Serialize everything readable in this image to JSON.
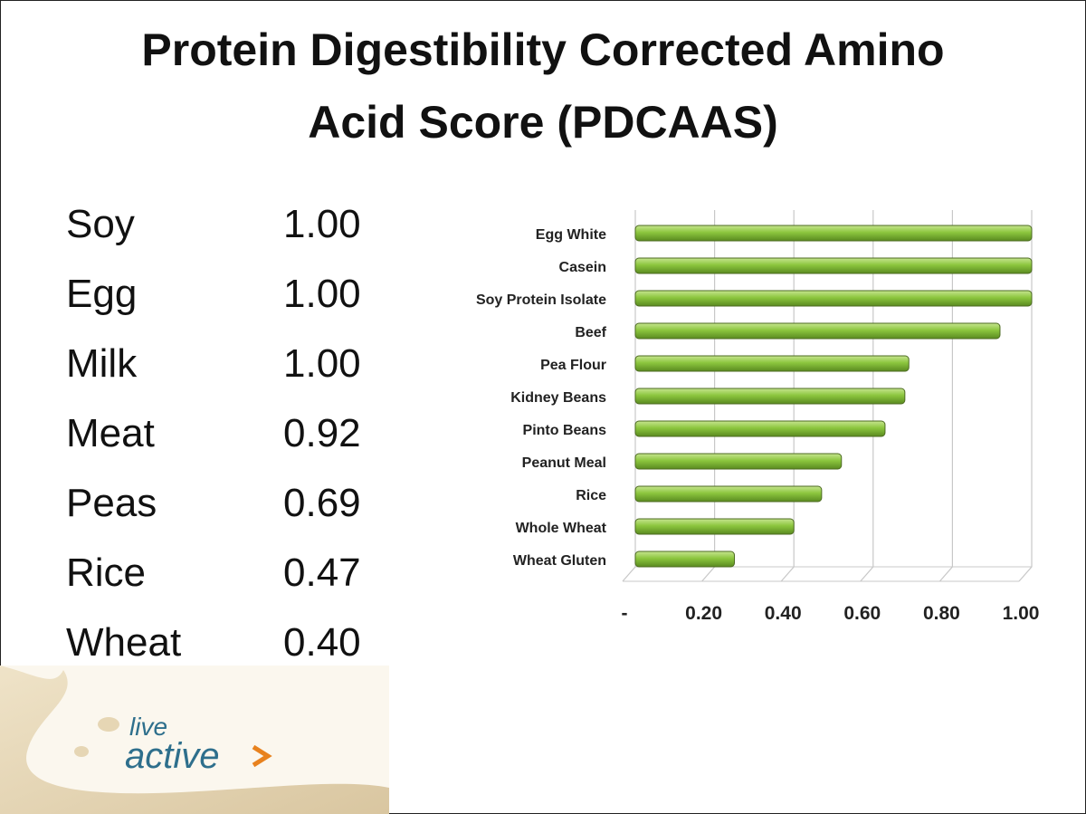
{
  "title": {
    "line1": "Protein Digestibility Corrected Amino",
    "line2": "Acid Score (PDCAAS)"
  },
  "table": {
    "rows": [
      [
        "Soy",
        "1.00"
      ],
      [
        "Egg",
        "1.00"
      ],
      [
        "Milk",
        "1.00"
      ],
      [
        "Meat",
        "0.92"
      ],
      [
        "Peas",
        "0.69"
      ],
      [
        "Rice",
        "0.47"
      ],
      [
        "Wheat",
        "0.40"
      ]
    ]
  },
  "chart_data": {
    "type": "hbar",
    "categories": [
      "Egg White",
      "Casein",
      "Soy Protein Isolate",
      "Beef",
      "Pea Flour",
      "Kidney Beans",
      "Pinto Beans",
      "Peanut Meal",
      "Rice",
      "Whole Wheat",
      "Wheat Gluten"
    ],
    "values": [
      1.0,
      1.0,
      1.0,
      0.92,
      0.69,
      0.68,
      0.63,
      0.52,
      0.47,
      0.4,
      0.25
    ],
    "color": "#8cc63e",
    "xlim": [
      0,
      1
    ],
    "xticks": [
      {
        "value": 0,
        "label": "-"
      },
      {
        "value": 0.2,
        "label": "0.20"
      },
      {
        "value": 0.4,
        "label": "0.40"
      },
      {
        "value": 0.6,
        "label": "0.60"
      },
      {
        "value": 0.8,
        "label": "0.80"
      },
      {
        "value": 1,
        "label": "1.00"
      }
    ],
    "grid": true
  },
  "logo": {
    "line1": "live",
    "line2": "active"
  }
}
